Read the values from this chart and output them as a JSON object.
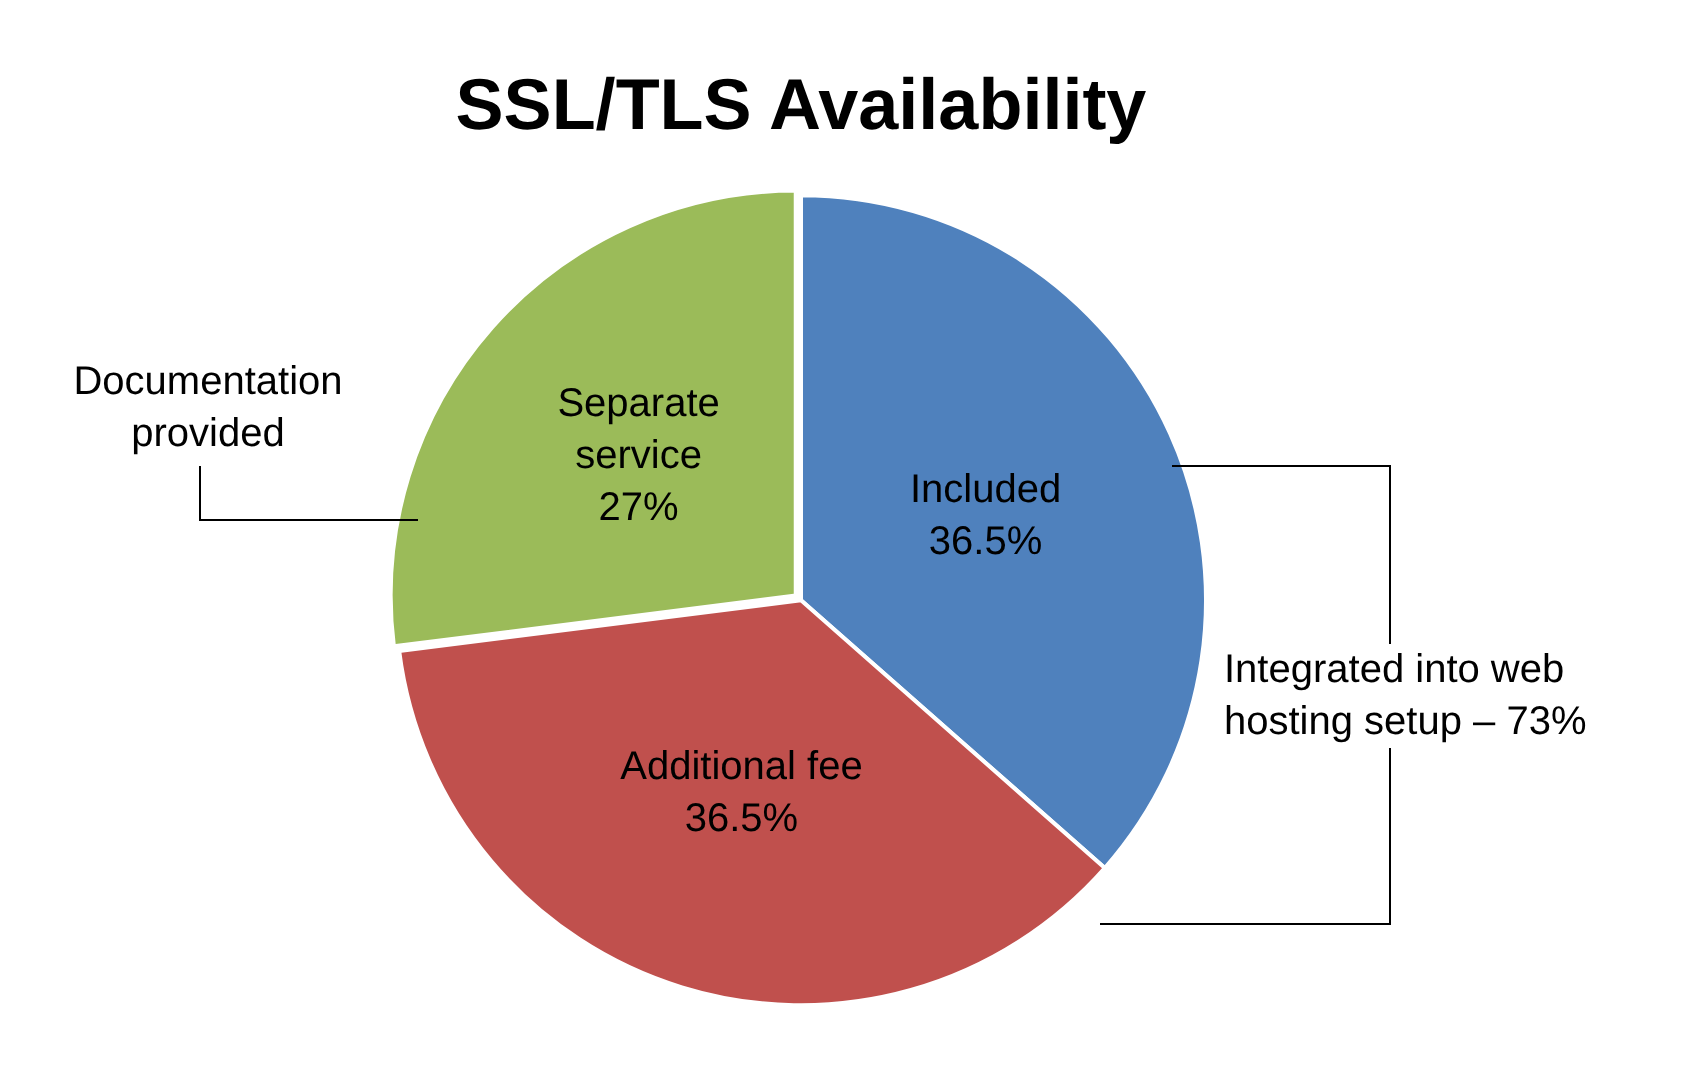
{
  "chart_data": {
    "type": "pie",
    "title": "SSL/TLS Availability",
    "categories": [
      "Included",
      "Additional fee",
      "Separate service"
    ],
    "values": [
      36.5,
      36.5,
      27
    ],
    "colors": [
      "#4f81bd",
      "#c0504d",
      "#9bbb59"
    ],
    "value_labels": [
      "36.5%",
      "36.5%",
      "27%"
    ],
    "annotations": [
      "Integrated into web hosting setup – 73%",
      "Documentation provided"
    ],
    "legend": false
  }
}
